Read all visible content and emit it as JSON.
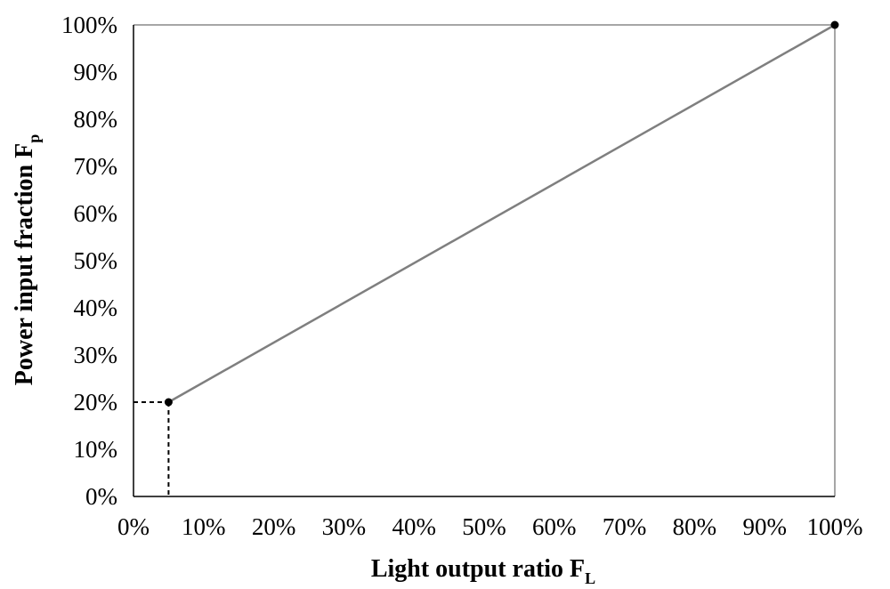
{
  "chart_data": {
    "type": "line",
    "xlabel": "Light output ratio F",
    "xlabel_subscript": "L",
    "ylabel": "Power input fraction F",
    "ylabel_subscript": "p",
    "xlim": [
      0,
      100
    ],
    "ylim": [
      0,
      100
    ],
    "x_ticks": [
      "0%",
      "10%",
      "20%",
      "30%",
      "40%",
      "50%",
      "60%",
      "70%",
      "80%",
      "90%",
      "100%"
    ],
    "y_ticks": [
      "0%",
      "10%",
      "20%",
      "30%",
      "40%",
      "50%",
      "60%",
      "70%",
      "80%",
      "90%",
      "100%"
    ],
    "grid": false,
    "series": [
      {
        "values": [
          {
            "x": 5,
            "y": 20
          },
          {
            "x": 100,
            "y": 100
          }
        ],
        "style": "solid",
        "markers": true
      }
    ],
    "reference_lines": {
      "x": 5,
      "y": 20,
      "style": "dashed"
    },
    "colors": {
      "line": "#7f7f7f",
      "marker": "#000000",
      "frame": "#a6a6a6",
      "axis": "#000000"
    }
  }
}
